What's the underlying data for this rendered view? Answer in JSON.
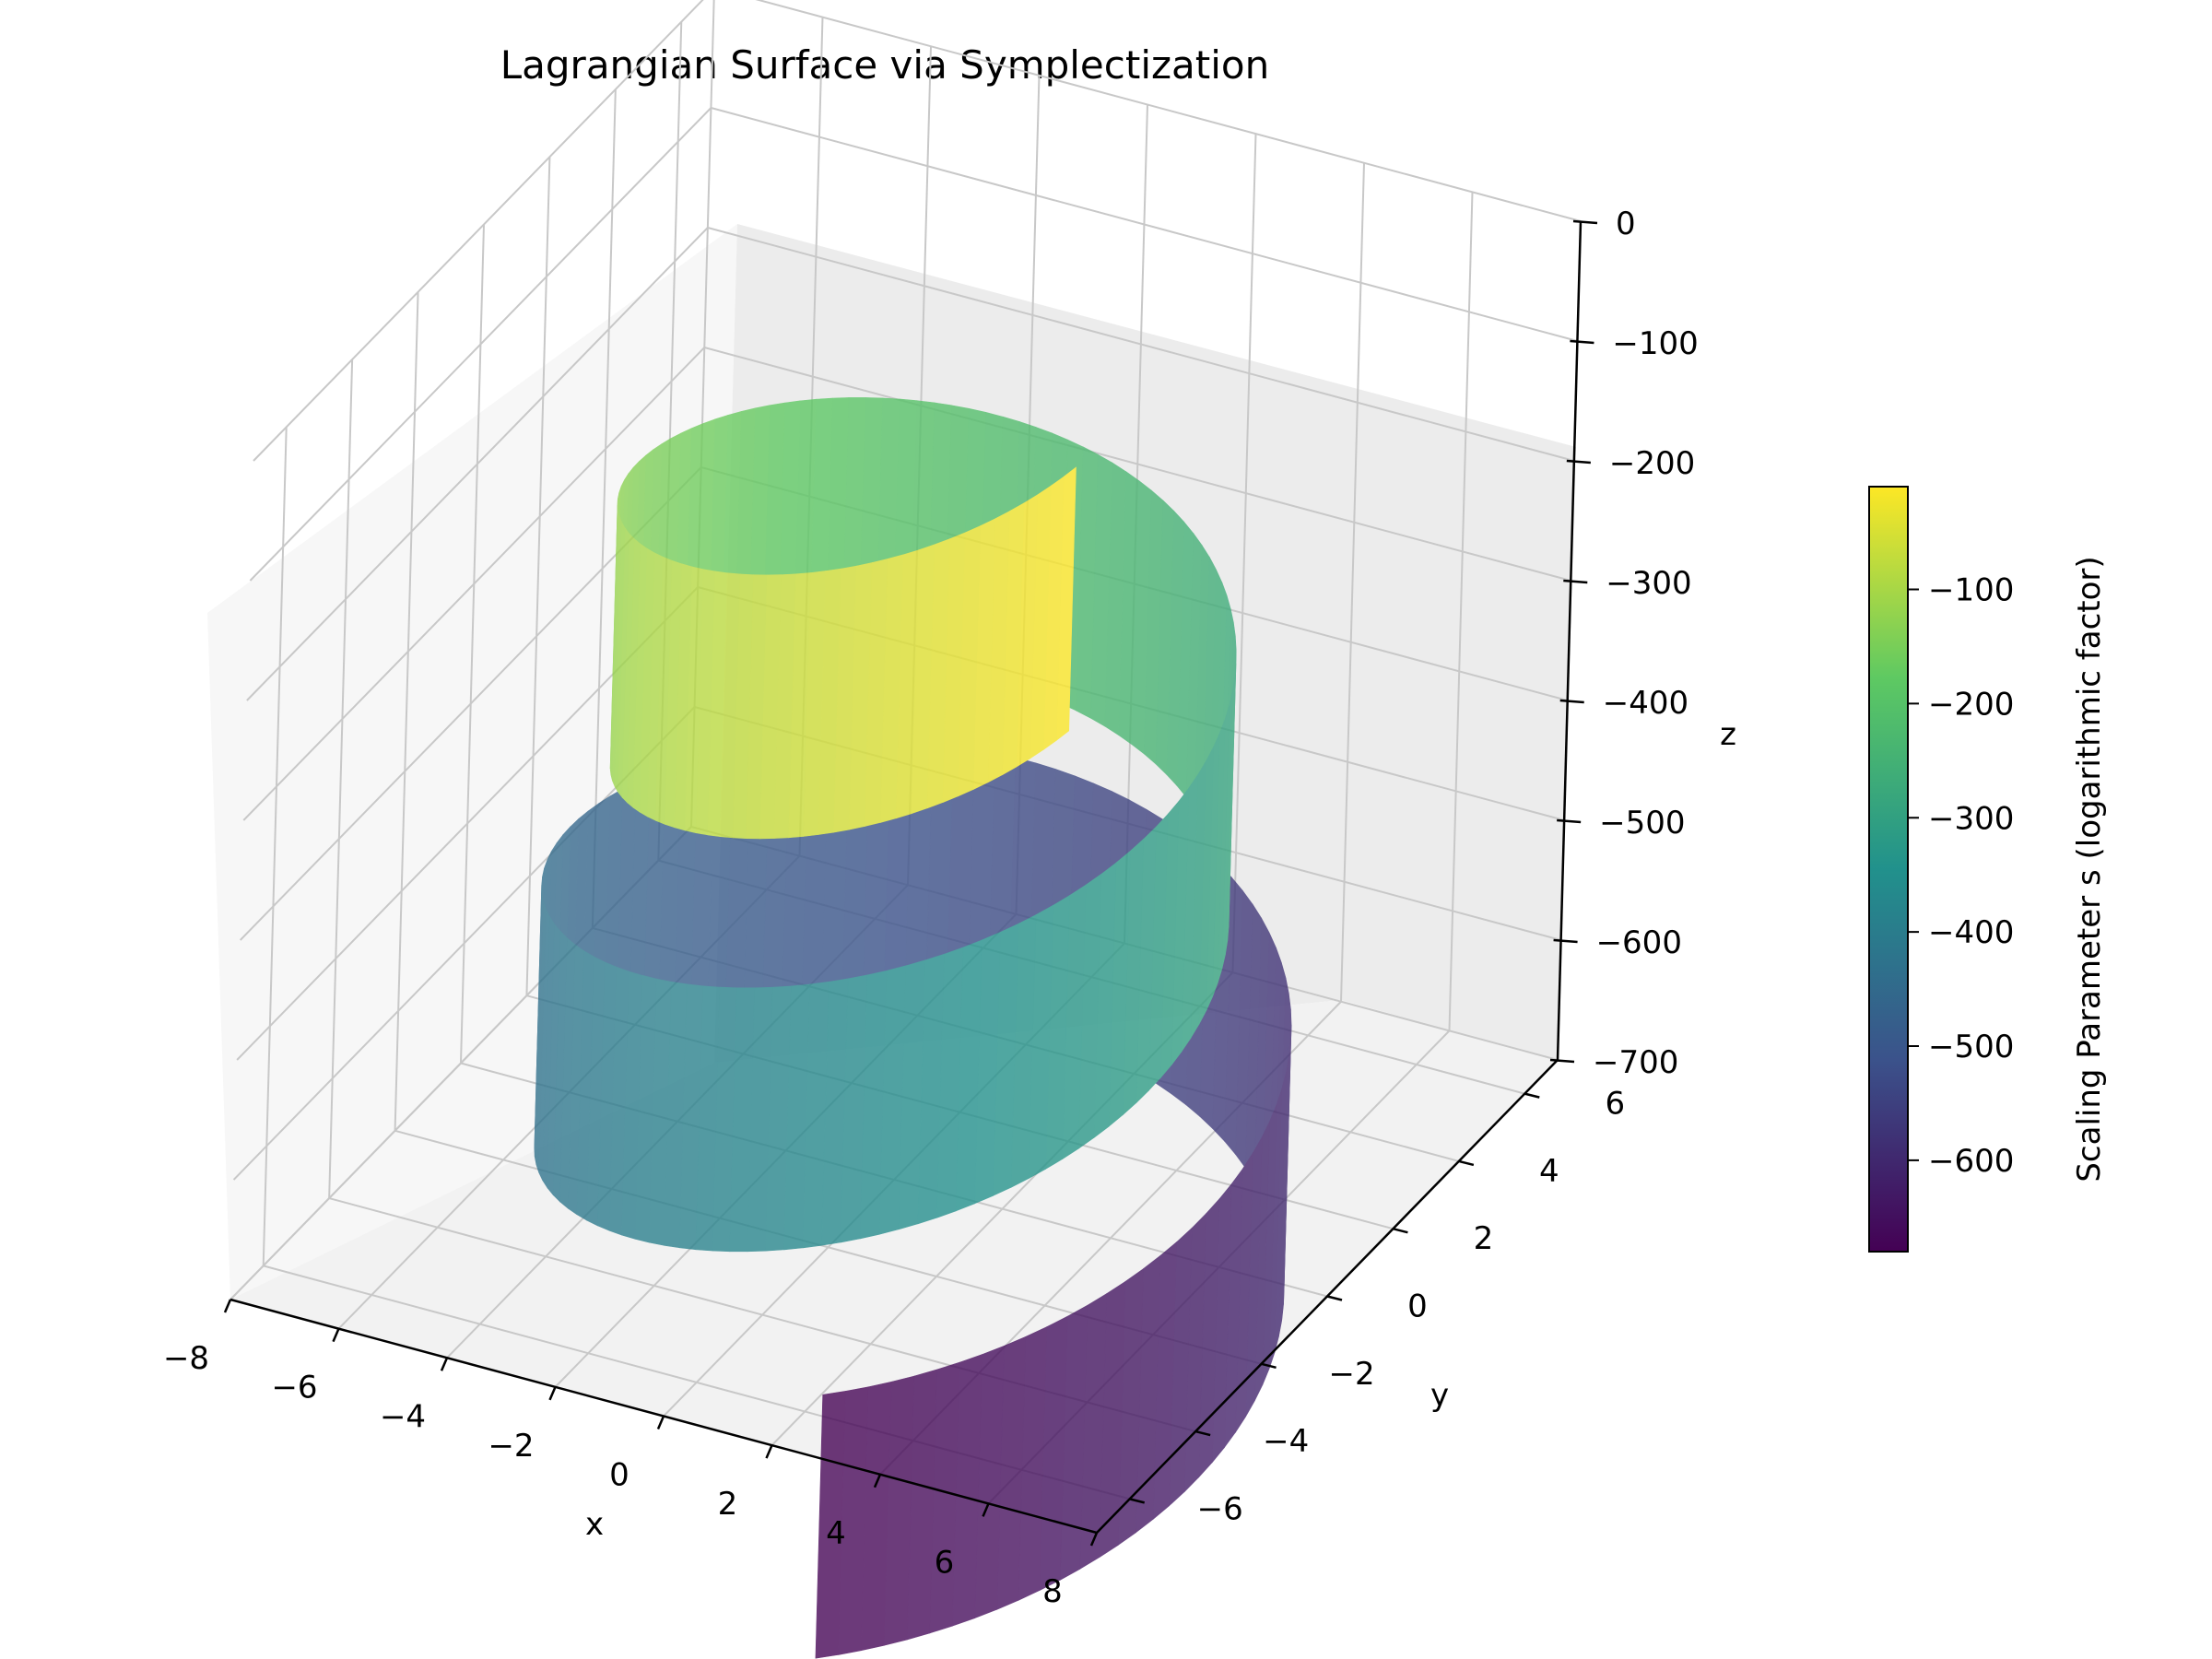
{
  "chart_data": {
    "type": "surface3d",
    "title": "Lagrangian Surface via Symplectization",
    "xlabel": "x",
    "ylabel": "y",
    "zlabel": "z",
    "xlim": [
      -8,
      8
    ],
    "ylim": [
      -7,
      7
    ],
    "zlim": [
      -700,
      0
    ],
    "x_ticks": [
      -8,
      -6,
      -4,
      -2,
      0,
      2,
      4,
      6,
      8
    ],
    "y_ticks": [
      -6,
      -4,
      -2,
      0,
      2,
      4,
      6
    ],
    "z_ticks": [
      0,
      -100,
      -200,
      -300,
      -400,
      -500,
      -600,
      -700
    ],
    "grid": true,
    "colormap": "viridis",
    "colorbar": {
      "label": "Scaling Parameter s (logarithmic factor)",
      "range": [
        -680,
        -10
      ],
      "ticks": [
        -100,
        -200,
        -300,
        -400,
        -500,
        -600
      ]
    },
    "surface_description": "spiral band rising from z≈-680 to z≈0 with radius shrinking",
    "colors": {
      "viridis": [
        "#440154",
        "#3b528b",
        "#21918c",
        "#5ec962",
        "#fde725"
      ],
      "pane": "#f2f2f2",
      "grid": "#c8c8c8"
    }
  },
  "minus": "−"
}
